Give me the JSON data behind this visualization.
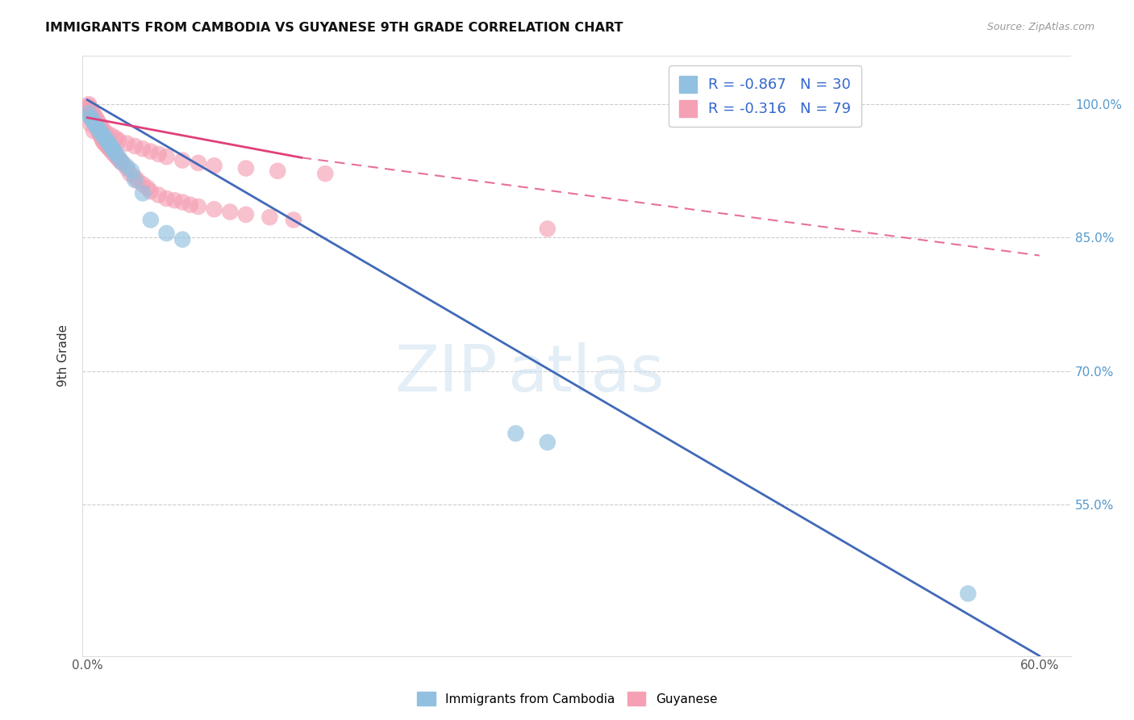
{
  "title": "IMMIGRANTS FROM CAMBODIA VS GUYANESE 9TH GRADE CORRELATION CHART",
  "source": "Source: ZipAtlas.com",
  "ylabel": "9th Grade",
  "watermark_zip": "ZIP",
  "watermark_atlas": "atlas",
  "legend_blue_r": "-0.867",
  "legend_blue_n": "30",
  "legend_pink_r": "-0.316",
  "legend_pink_n": "79",
  "blue_color": "#92c0e0",
  "pink_color": "#f5a0b5",
  "blue_line_color": "#4169b8",
  "pink_line_color": "#e0407a",
  "xlim": [
    -0.003,
    0.62
  ],
  "ylim": [
    0.38,
    1.055
  ],
  "x_ticks": [
    0.0,
    0.12,
    0.24,
    0.36,
    0.48,
    0.6
  ],
  "x_tick_labels": [
    "0.0%",
    "",
    "",
    "",
    "",
    "60.0%"
  ],
  "y_ticks": [
    0.55,
    0.7,
    0.85,
    1.0
  ],
  "y_tick_labels": [
    "55.0%",
    "70.0%",
    "85.0%",
    "100.0%"
  ],
  "blue_line": {
    "x0": 0.0,
    "y0": 1.005,
    "x1": 0.6,
    "y1": 0.38
  },
  "pink_line_solid": {
    "x0": 0.0,
    "y0": 0.985,
    "x1": 0.135,
    "y1": 0.94
  },
  "pink_line_dash": {
    "x0": 0.135,
    "y0": 0.94,
    "x1": 0.6,
    "y1": 0.83
  },
  "blue_scatter": {
    "x": [
      0.001,
      0.002,
      0.003,
      0.004,
      0.005,
      0.006,
      0.007,
      0.008,
      0.009,
      0.01,
      0.011,
      0.012,
      0.013,
      0.014,
      0.015,
      0.016,
      0.017,
      0.018,
      0.02,
      0.022,
      0.025,
      0.028,
      0.03,
      0.035,
      0.04,
      0.05,
      0.06,
      0.27,
      0.29,
      0.555
    ],
    "y": [
      0.99,
      0.985,
      0.983,
      0.98,
      0.978,
      0.975,
      0.972,
      0.97,
      0.967,
      0.965,
      0.963,
      0.96,
      0.958,
      0.955,
      0.952,
      0.95,
      0.947,
      0.945,
      0.94,
      0.935,
      0.93,
      0.925,
      0.915,
      0.9,
      0.87,
      0.855,
      0.848,
      0.63,
      0.62,
      0.45
    ]
  },
  "pink_scatter": {
    "x": [
      0.001,
      0.001,
      0.002,
      0.002,
      0.003,
      0.003,
      0.004,
      0.004,
      0.005,
      0.005,
      0.006,
      0.006,
      0.007,
      0.007,
      0.008,
      0.008,
      0.009,
      0.009,
      0.01,
      0.01,
      0.011,
      0.012,
      0.013,
      0.014,
      0.015,
      0.016,
      0.017,
      0.018,
      0.019,
      0.02,
      0.021,
      0.022,
      0.025,
      0.027,
      0.03,
      0.032,
      0.035,
      0.038,
      0.04,
      0.045,
      0.05,
      0.055,
      0.06,
      0.065,
      0.07,
      0.08,
      0.09,
      0.1,
      0.115,
      0.13,
      0.001,
      0.002,
      0.003,
      0.004,
      0.005,
      0.006,
      0.007,
      0.008,
      0.009,
      0.01,
      0.012,
      0.015,
      0.018,
      0.02,
      0.025,
      0.03,
      0.035,
      0.04,
      0.045,
      0.05,
      0.06,
      0.07,
      0.08,
      0.1,
      0.12,
      0.15,
      0.002,
      0.004,
      0.29
    ],
    "y": [
      1.0,
      0.996,
      0.993,
      0.99,
      0.988,
      0.986,
      0.984,
      0.982,
      0.98,
      0.978,
      0.976,
      0.974,
      0.972,
      0.97,
      0.968,
      0.966,
      0.964,
      0.962,
      0.96,
      0.958,
      0.956,
      0.954,
      0.952,
      0.95,
      0.948,
      0.946,
      0.944,
      0.942,
      0.94,
      0.938,
      0.936,
      0.934,
      0.928,
      0.922,
      0.918,
      0.914,
      0.91,
      0.906,
      0.902,
      0.898,
      0.894,
      0.892,
      0.89,
      0.887,
      0.885,
      0.882,
      0.879,
      0.876,
      0.873,
      0.87,
      0.998,
      0.995,
      0.992,
      0.989,
      0.986,
      0.983,
      0.98,
      0.977,
      0.974,
      0.971,
      0.968,
      0.965,
      0.962,
      0.959,
      0.956,
      0.953,
      0.95,
      0.947,
      0.944,
      0.941,
      0.937,
      0.934,
      0.931,
      0.928,
      0.925,
      0.922,
      0.978,
      0.97,
      0.86
    ]
  }
}
